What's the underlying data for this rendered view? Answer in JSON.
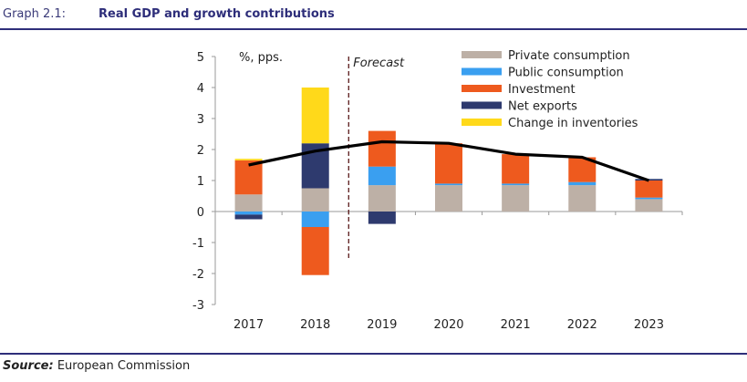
{
  "header": {
    "label": "Graph 2.1:",
    "title": "Real GDP and growth contributions"
  },
  "footer": {
    "source_label": "Source:",
    "source_text": "European Commission"
  },
  "colors": {
    "private_consumption": "#bdb0a6",
    "public_consumption": "#3a9ff0",
    "investment": "#ee5a1e",
    "net_exports": "#2e3a6e",
    "change_in_inventories": "#ffd91a",
    "gdp_line": "#000000",
    "title": "#2e2e7a"
  },
  "chart_data": {
    "type": "bar",
    "stacked": true,
    "unit_label": "%, pps.",
    "forecast_label": "Forecast",
    "categories": [
      "2017",
      "2018",
      "2019",
      "2020",
      "2021",
      "2022",
      "2023"
    ],
    "ylim": [
      -3,
      5
    ],
    "yticks": [
      "5",
      "4",
      "3",
      "2",
      "1",
      "0",
      "-1",
      "-2",
      "-3"
    ],
    "legend_position": "top-right",
    "series": [
      {
        "name": "Private consumption",
        "key": "private_consumption",
        "values": [
          0.55,
          0.75,
          0.85,
          0.85,
          0.85,
          0.85,
          0.4
        ]
      },
      {
        "name": "Public consumption",
        "key": "public_consumption",
        "values": [
          -0.1,
          -0.5,
          0.6,
          0.05,
          0.05,
          0.1,
          0.05
        ]
      },
      {
        "name": "Investment",
        "key": "investment",
        "values": [
          1.1,
          -1.55,
          1.15,
          1.3,
          0.95,
          0.8,
          0.55
        ]
      },
      {
        "name": "Net exports",
        "key": "net_exports",
        "values": [
          -0.15,
          1.45,
          -0.4,
          0.0,
          0.0,
          0.0,
          0.05
        ]
      },
      {
        "name": "Change in inventories",
        "key": "change_in_inventories",
        "values": [
          0.05,
          1.8,
          0.0,
          0.0,
          0.0,
          0.0,
          0.0
        ]
      }
    ],
    "line": {
      "name": "Real GDP",
      "values": [
        1.5,
        1.95,
        2.25,
        2.2,
        1.85,
        1.75,
        1.0
      ]
    }
  }
}
